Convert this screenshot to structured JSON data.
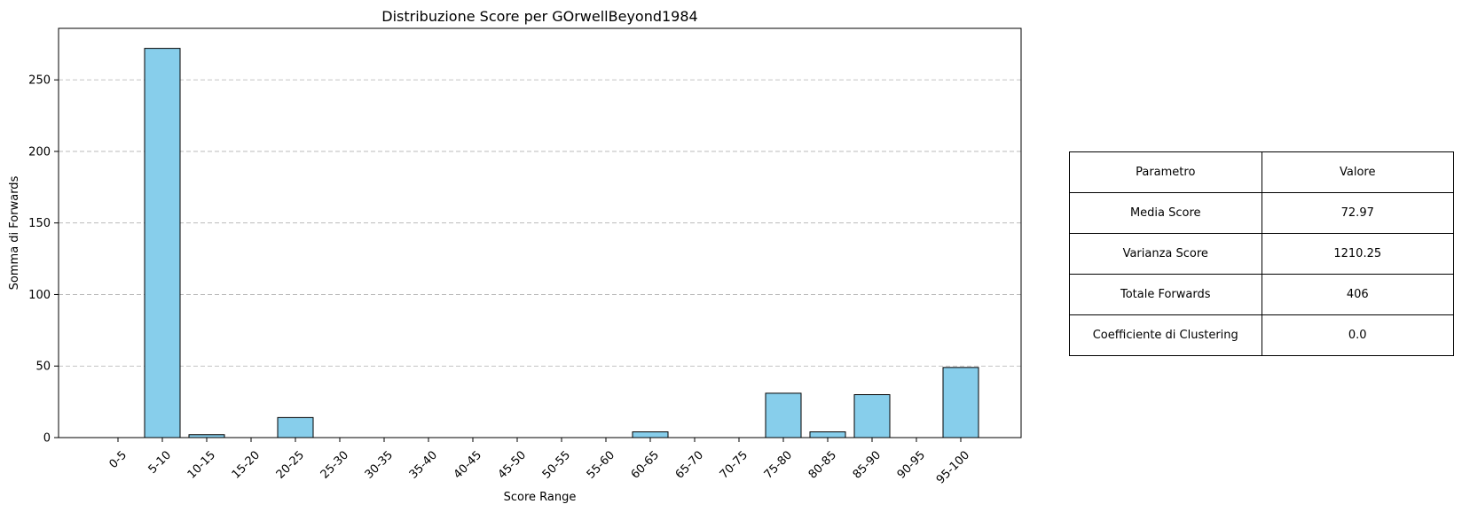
{
  "chart_data": {
    "type": "bar",
    "title": "Distribuzione Score per GOrwellBeyond1984",
    "xlabel": "Score Range",
    "ylabel": "Somma di Forwards",
    "categories": [
      "0-5",
      "5-10",
      "10-15",
      "15-20",
      "20-25",
      "25-30",
      "30-35",
      "35-40",
      "40-45",
      "45-50",
      "50-55",
      "55-60",
      "60-65",
      "65-70",
      "70-75",
      "75-80",
      "80-85",
      "85-90",
      "90-95",
      "95-100"
    ],
    "values": [
      0,
      272,
      2,
      0,
      14,
      0,
      0,
      0,
      0,
      0,
      0,
      0,
      4,
      0,
      0,
      31,
      4,
      30,
      0,
      49
    ],
    "ylim": [
      0,
      286
    ],
    "yticks": [
      0,
      50,
      100,
      150,
      200,
      250
    ],
    "grid": "y-dashed",
    "bar_color": "#87ceeb",
    "edge_color": "#000000",
    "grid_color": "#b0b0b0"
  },
  "table": {
    "header": [
      "Parametro",
      "Valore"
    ],
    "rows": [
      [
        "Media Score",
        "72.97"
      ],
      [
        "Varianza Score",
        "1210.25"
      ],
      [
        "Totale Forwards",
        "406"
      ],
      [
        "Coefficiente di Clustering",
        "0.0"
      ]
    ]
  }
}
